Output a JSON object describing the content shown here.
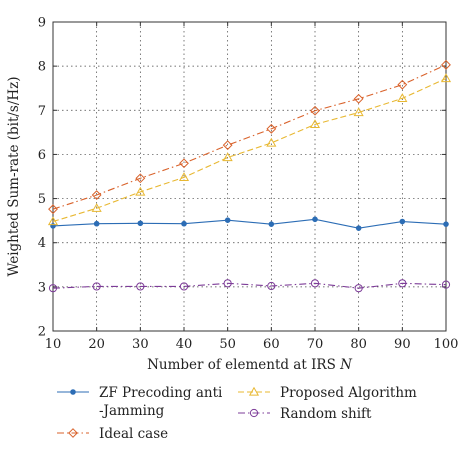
{
  "chart_data": {
    "type": "line",
    "title": "",
    "xlabel": "Number of elementd at IRS",
    "xlabel_var": "N",
    "ylabel": "Weighted Sum-rate (bit/s/Hz)",
    "xlim": [
      10,
      100
    ],
    "ylim": [
      2,
      9
    ],
    "x": [
      10,
      20,
      30,
      40,
      50,
      60,
      70,
      80,
      90,
      100
    ],
    "x_ticks": [
      "10",
      "20",
      "30",
      "40",
      "50",
      "60",
      "70",
      "80",
      "90",
      "100"
    ],
    "y_ticks": [
      "2",
      "3",
      "4",
      "5",
      "6",
      "7",
      "8",
      "9"
    ],
    "grid": true,
    "legend_position": "bottom",
    "series": [
      {
        "name_lines": [
          "ZF Precoding anti",
          "-Jamming"
        ],
        "values": [
          4.38,
          4.43,
          4.44,
          4.43,
          4.51,
          4.42,
          4.53,
          4.33,
          4.48,
          4.42
        ],
        "color": "#2c6db5",
        "marker": "dot",
        "dash": "solid"
      },
      {
        "name_lines": [
          "Proposed Algorithm"
        ],
        "values": [
          4.48,
          4.78,
          5.15,
          5.48,
          5.93,
          6.26,
          6.68,
          6.95,
          7.27,
          7.72
        ],
        "color": "#e8b832",
        "marker": "triangle",
        "dash": "dashed"
      },
      {
        "name_lines": [
          "Ideal case"
        ],
        "values": [
          4.76,
          5.08,
          5.46,
          5.8,
          6.21,
          6.58,
          6.99,
          7.26,
          7.58,
          8.03
        ],
        "color": "#d9622b",
        "marker": "diamond",
        "dash": "dashdot"
      },
      {
        "name_lines": [
          "Random shift"
        ],
        "values": [
          2.97,
          3.01,
          3.01,
          3.01,
          3.08,
          3.02,
          3.08,
          2.97,
          3.08,
          3.05
        ],
        "color": "#7d3c98",
        "marker": "circle",
        "dash": "dashdot"
      }
    ]
  }
}
